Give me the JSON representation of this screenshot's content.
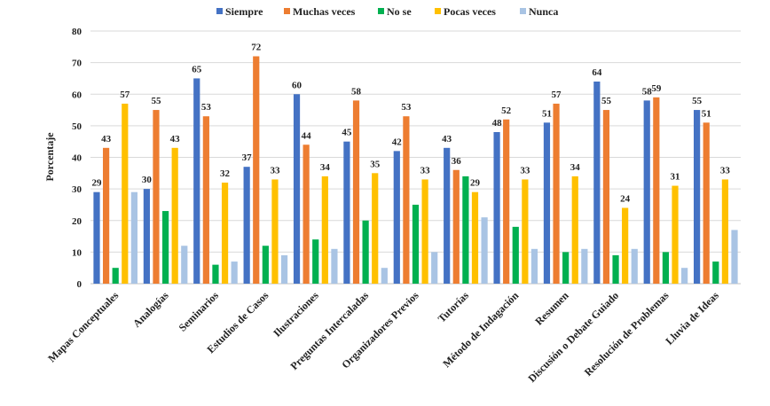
{
  "chart_data": {
    "type": "bar",
    "title": "",
    "ylabel": "Porcentaje",
    "xlabel": "",
    "ylim": [
      0,
      80
    ],
    "yticks": [
      0,
      10,
      20,
      30,
      40,
      50,
      60,
      70,
      80
    ],
    "grid": true,
    "legend_position": "top",
    "categories": [
      "Mapas Conceptuales",
      "Analogías",
      "Seminarios",
      "Estudios de Casos",
      "Ilustraciones",
      "Preguntas Intercaladas",
      "Organizadores Previos",
      "Tutorías",
      "Método de Indagación",
      "Resumen",
      "Discusión o Debate Guiado",
      "Resolución de Problemas",
      "Lluvia de Ideas"
    ],
    "series": [
      {
        "name": "Siempre",
        "color": "#4472c4",
        "values": [
          29,
          30,
          65,
          37,
          60,
          45,
          42,
          43,
          48,
          51,
          64,
          58,
          55
        ]
      },
      {
        "name": "Muchas veces",
        "color": "#ed7d31",
        "values": [
          43,
          55,
          53,
          72,
          44,
          58,
          53,
          36,
          52,
          57,
          55,
          59,
          51
        ]
      },
      {
        "name": "No se",
        "color": "#00b050",
        "values": [
          5,
          23,
          6,
          12,
          14,
          20,
          25,
          34,
          18,
          10,
          9,
          10,
          7
        ]
      },
      {
        "name": "Pocas veces",
        "color": "#ffc000",
        "values": [
          57,
          43,
          32,
          33,
          34,
          35,
          33,
          29,
          33,
          34,
          24,
          31,
          33
        ]
      },
      {
        "name": "Nunca",
        "color": "#a9c4e4",
        "values": [
          29,
          12,
          7,
          9,
          11,
          5,
          10,
          21,
          11,
          11,
          11,
          5,
          17
        ]
      }
    ],
    "labeled_series": [
      "Siempre",
      "Muchas veces",
      "Pocas veces"
    ]
  }
}
